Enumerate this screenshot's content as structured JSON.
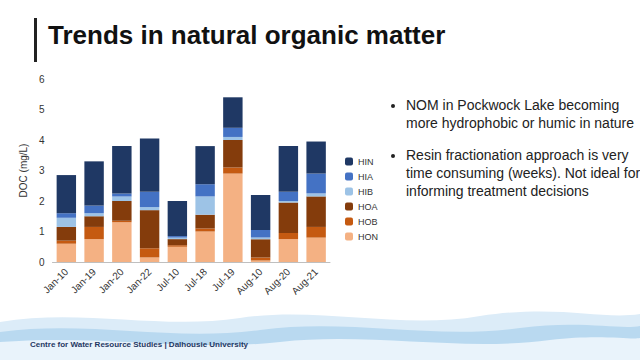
{
  "slide": {
    "title": "Trends in natural organic matter",
    "bullets": [
      "NOM in Pockwock Lake becoming more hydrophobic or humic in nature",
      "Resin fractionation approach is very time consuming (weeks). Not ideal for informing treatment decisions"
    ],
    "footer": "Centre for Water Resource Studies | Dalhousie University"
  },
  "chart_data": {
    "type": "bar",
    "stacked": true,
    "categories": [
      "Jan-10",
      "Jan-19",
      "Jan-20",
      "Jan-22",
      "Jul-10",
      "Jul-18",
      "Jul-19",
      "Aug-10",
      "Aug-20",
      "Aug-21"
    ],
    "series": [
      {
        "name": "HON",
        "color": "#f4b183",
        "values": [
          0.6,
          0.75,
          1.3,
          0.15,
          0.5,
          1.0,
          2.9,
          0.05,
          0.75,
          0.8
        ]
      },
      {
        "name": "HOB",
        "color": "#c55a11",
        "values": [
          0.1,
          0.4,
          0.05,
          0.3,
          0.05,
          0.1,
          0.2,
          0.1,
          0.2,
          0.35
        ]
      },
      {
        "name": "HOA",
        "color": "#843c0c",
        "values": [
          0.45,
          0.35,
          0.65,
          1.25,
          0.2,
          0.45,
          0.9,
          0.6,
          1.0,
          1.0
        ]
      },
      {
        "name": "HIB",
        "color": "#9dc3e6",
        "values": [
          0.3,
          0.1,
          0.15,
          0.1,
          0.05,
          0.6,
          0.1,
          0.05,
          0.05,
          0.1
        ]
      },
      {
        "name": "HIA",
        "color": "#4472c4",
        "values": [
          0.15,
          0.25,
          0.1,
          0.5,
          0.05,
          0.4,
          0.3,
          0.25,
          0.3,
          0.65
        ]
      },
      {
        "name": "HIN",
        "color": "#1f3864",
        "values": [
          1.25,
          1.45,
          1.55,
          1.75,
          1.15,
          1.25,
          1.0,
          1.15,
          1.5,
          1.05
        ]
      }
    ],
    "ylabel": "DOC (mg/L)",
    "ylim": [
      0,
      6
    ],
    "yticks": [
      0,
      1,
      2,
      3,
      4,
      5,
      6
    ],
    "grid": false,
    "legend": "right"
  }
}
